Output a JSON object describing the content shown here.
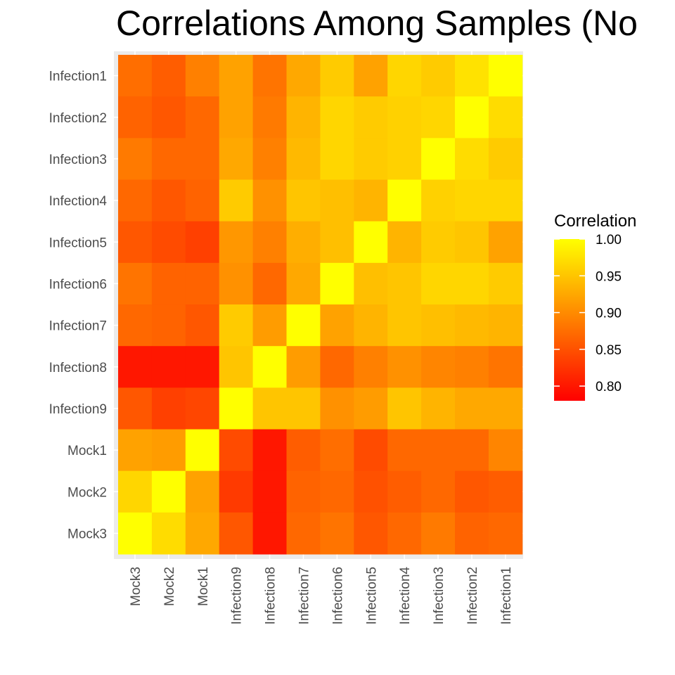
{
  "chart_data": {
    "type": "heatmap",
    "title": "Correlations Among Samples (No",
    "x_categories": [
      "Mock3",
      "Mock2",
      "Mock1",
      "Infection9",
      "Infection8",
      "Infection7",
      "Infection6",
      "Infection5",
      "Infection4",
      "Infection3",
      "Infection2",
      "Infection1"
    ],
    "y_categories": [
      "Infection1",
      "Infection2",
      "Infection3",
      "Infection4",
      "Infection5",
      "Infection6",
      "Infection7",
      "Infection8",
      "Infection9",
      "Mock1",
      "Mock2",
      "Mock3"
    ],
    "values": [
      [
        0.875,
        0.86,
        0.89,
        0.92,
        0.88,
        0.925,
        0.955,
        0.92,
        0.965,
        0.955,
        0.975,
        1.0
      ],
      [
        0.865,
        0.855,
        0.87,
        0.92,
        0.885,
        0.935,
        0.965,
        0.955,
        0.96,
        0.965,
        1.0,
        0.97
      ],
      [
        0.885,
        0.87,
        0.87,
        0.925,
        0.89,
        0.94,
        0.965,
        0.955,
        0.96,
        1.0,
        0.97,
        0.955
      ],
      [
        0.87,
        0.855,
        0.865,
        0.955,
        0.905,
        0.95,
        0.945,
        0.935,
        1.0,
        0.96,
        0.965,
        0.965
      ],
      [
        0.855,
        0.845,
        0.835,
        0.91,
        0.89,
        0.93,
        0.945,
        1.0,
        0.935,
        0.955,
        0.95,
        0.92
      ],
      [
        0.88,
        0.865,
        0.865,
        0.905,
        0.87,
        0.925,
        1.0,
        0.945,
        0.95,
        0.965,
        0.965,
        0.955
      ],
      [
        0.87,
        0.865,
        0.855,
        0.955,
        0.915,
        1.0,
        0.92,
        0.935,
        0.95,
        0.945,
        0.94,
        0.935
      ],
      [
        0.8,
        0.8,
        0.8,
        0.95,
        1.0,
        0.915,
        0.87,
        0.89,
        0.905,
        0.895,
        0.89,
        0.88
      ],
      [
        0.855,
        0.835,
        0.84,
        1.0,
        0.95,
        0.95,
        0.905,
        0.915,
        0.95,
        0.935,
        0.925,
        0.925
      ],
      [
        0.92,
        0.915,
        1.0,
        0.845,
        0.8,
        0.86,
        0.875,
        0.845,
        0.87,
        0.87,
        0.87,
        0.895
      ],
      [
        0.965,
        1.0,
        0.92,
        0.83,
        0.8,
        0.865,
        0.87,
        0.85,
        0.86,
        0.87,
        0.855,
        0.86
      ],
      [
        1.0,
        0.97,
        0.925,
        0.855,
        0.8,
        0.87,
        0.88,
        0.855,
        0.87,
        0.885,
        0.865,
        0.87
      ]
    ],
    "color_scale": {
      "low_color": "#FF0000",
      "high_color": "#FFFF00",
      "domain": [
        0.78,
        1.0
      ]
    },
    "legend": {
      "title": "Correlation",
      "ticks": [
        1.0,
        0.95,
        0.9,
        0.85,
        0.8
      ],
      "tick_labels": [
        "1.00",
        "0.95",
        "0.90",
        "0.85",
        "0.80"
      ],
      "placement": "right"
    },
    "xlabel": "",
    "ylabel": "",
    "grid": true,
    "panel_background": "#EBEBEB"
  }
}
